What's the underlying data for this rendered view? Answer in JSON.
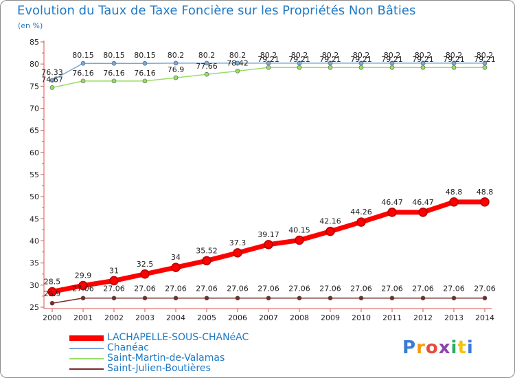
{
  "chart_data": {
    "type": "line",
    "title": "Evolution du Taux de Taxe Foncière sur les Propriétés Non Bâties",
    "subtitle": "(en %)",
    "xlabel": "",
    "ylabel": "(en %)",
    "ylim": [
      25,
      85
    ],
    "yticks": [
      25,
      30,
      35,
      40,
      45,
      50,
      55,
      60,
      65,
      70,
      75,
      80,
      85
    ],
    "grid": false,
    "categories": [
      "2000",
      "2001",
      "2002",
      "2003",
      "2004",
      "2005",
      "2006",
      "2007",
      "2008",
      "2009",
      "2010",
      "2011",
      "2012",
      "2013",
      "2014"
    ],
    "series": [
      {
        "name": "LACHAPELLE-SOUS-CHANéAC",
        "color": "#ff0000",
        "values": [
          28.5,
          29.9,
          31,
          32.5,
          34,
          35.52,
          37.3,
          39.17,
          40.15,
          42.16,
          44.26,
          46.47,
          46.47,
          48.8,
          48.8
        ],
        "labels": [
          "28.5",
          "29.9",
          "31",
          "32.5",
          "34",
          "35.52",
          "37.3",
          "39.17",
          "40.15",
          "42.16",
          "44.26",
          "46.47",
          "46.47",
          "48.8",
          "48.8"
        ]
      },
      {
        "name": "Chanéac",
        "color": "#7aa7d6",
        "values": [
          76.33,
          80.15,
          80.15,
          80.15,
          80.2,
          80.2,
          80.2,
          80.2,
          80.2,
          80.2,
          80.2,
          80.2,
          80.2,
          80.2,
          80.2
        ],
        "labels": [
          "76.33",
          "80.15",
          "80.15",
          "80.15",
          "80.2",
          "80.2",
          "80.2",
          "80.2",
          "80.2",
          "80.2",
          "80.2",
          "80.2",
          "80.2",
          "80.2",
          "80.2"
        ]
      },
      {
        "name": "Saint-Martin-de-Valamas",
        "color": "#99dd66",
        "values": [
          74.67,
          76.16,
          76.16,
          76.16,
          76.9,
          77.66,
          78.42,
          79.21,
          79.21,
          79.21,
          79.21,
          79.21,
          79.21,
          79.21,
          79.21
        ],
        "labels": [
          "74.67",
          "76.16",
          "76.16",
          "76.16",
          "76.9",
          "77.66",
          "78.42",
          "79.21",
          "79.21",
          "79.21",
          "79.21",
          "79.21",
          "79.21",
          "79.21",
          "79.21"
        ]
      },
      {
        "name": "Saint-Julien-Boutières",
        "color": "#7a2a2a",
        "values": [
          25.9,
          27.06,
          27.06,
          27.06,
          27.06,
          27.06,
          27.06,
          27.06,
          27.06,
          27.06,
          27.06,
          27.06,
          27.06,
          27.06,
          27.06
        ],
        "labels": [
          "25.9",
          "27.06",
          "27.06",
          "27.06",
          "27.06",
          "27.06",
          "27.06",
          "27.06",
          "27.06",
          "27.06",
          "27.06",
          "27.06",
          "27.06",
          "27.06",
          "27.06"
        ]
      }
    ],
    "legend_position": "bottom-left"
  },
  "logo": {
    "text": "Proxiti",
    "letters": [
      "P",
      "r",
      "o",
      "x",
      "i",
      "t",
      "i"
    ],
    "colors": [
      "#3a7bd5",
      "#f39c12",
      "#e74c3c",
      "#8e44ad",
      "#27ae60",
      "#f1c40f",
      "#3a7bd5"
    ]
  }
}
